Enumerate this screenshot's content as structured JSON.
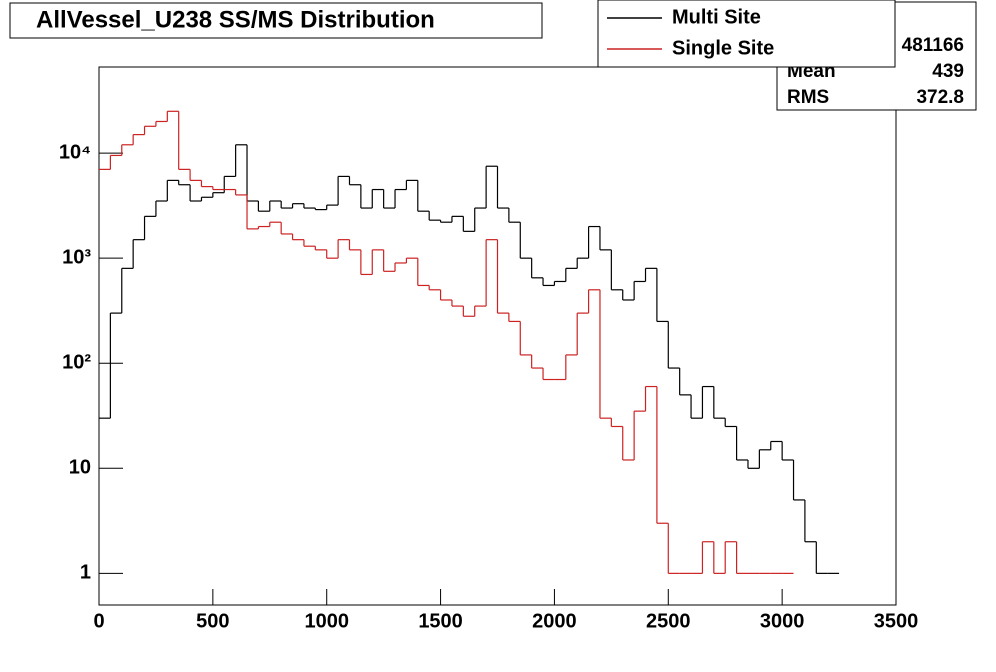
{
  "chart_data": {
    "type": "histogram",
    "title": "AllVessel_U238 SS/MS Distribution",
    "bins": [
      0,
      50,
      100,
      150,
      200,
      250,
      300,
      350,
      400,
      450,
      500,
      550,
      600,
      650,
      700,
      750,
      800,
      850,
      900,
      950,
      1000,
      1050,
      1100,
      1150,
      1200,
      1250,
      1300,
      1350,
      1400,
      1450,
      1500,
      1550,
      1600,
      1650,
      1700,
      1750,
      1800,
      1850,
      1900,
      1950,
      2000,
      2050,
      2100,
      2150,
      2200,
      2250,
      2300,
      2350,
      2400,
      2450,
      2500,
      2550,
      2600,
      2650,
      2700,
      2750,
      2800,
      2850,
      2900,
      2950,
      3000,
      3050,
      3100,
      3150,
      3200,
      3250
    ],
    "series": [
      {
        "name": "Multi Site",
        "color": "#000000",
        "values": [
          30,
          300,
          800,
          1500,
          2500,
          3500,
          5500,
          5000,
          3500,
          3800,
          4200,
          6000,
          12000,
          3500,
          2800,
          3500,
          3000,
          3300,
          3000,
          2900,
          3200,
          6000,
          5000,
          3000,
          4500,
          3000,
          4500,
          5500,
          2800,
          2300,
          2200,
          2500,
          1800,
          3000,
          7500,
          3000,
          2200,
          1000,
          650,
          550,
          600,
          800,
          1000,
          2000,
          1200,
          500,
          400,
          600,
          800,
          250,
          90,
          50,
          30,
          60,
          30,
          25,
          12,
          10,
          15,
          18,
          12,
          5,
          2,
          1,
          1
        ]
      },
      {
        "name": "Single Site",
        "color": "#cc2222",
        "values": [
          7000,
          9500,
          12000,
          15000,
          18000,
          20000,
          25000,
          7000,
          5500,
          4800,
          4500,
          4500,
          4000,
          1900,
          2000,
          2200,
          1700,
          1500,
          1300,
          1200,
          1000,
          1500,
          1200,
          700,
          1200,
          750,
          900,
          1000,
          550,
          500,
          400,
          350,
          280,
          350,
          1500,
          300,
          250,
          120,
          90,
          70,
          70,
          120,
          300,
          500,
          30,
          25,
          12,
          35,
          60,
          3,
          1,
          1,
          1,
          2,
          1,
          2,
          1,
          1,
          1,
          1,
          1,
          null,
          null,
          null,
          null
        ]
      }
    ],
    "xlim": [
      0,
      3500
    ],
    "xticks": [
      0,
      500,
      1000,
      1500,
      2000,
      2500,
      3000,
      3500
    ],
    "ylim": [
      0.5,
      66000
    ],
    "yticks": [
      1,
      10,
      {
        "value": 100,
        "label": "10²"
      },
      {
        "value": 1000,
        "label": "10³"
      },
      {
        "value": 10000,
        "label": "10⁴"
      }
    ],
    "log_y": true,
    "stats": [
      {
        "value": 481166
      },
      {
        "name": "Mean",
        "value": 439
      },
      {
        "name": "RMS",
        "value": 372.8
      }
    ]
  }
}
